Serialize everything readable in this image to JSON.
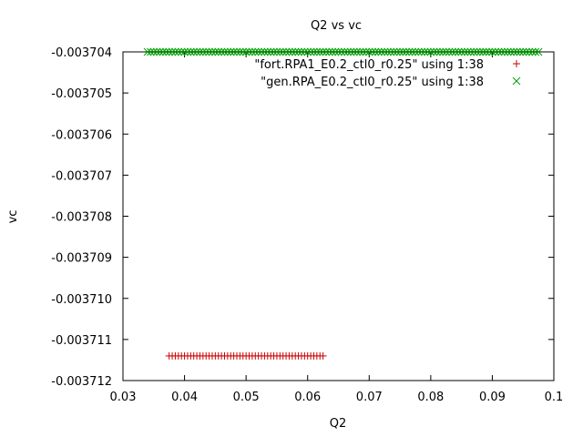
{
  "chart_data": {
    "type": "scatter",
    "title": "Q2 vs vc",
    "xlabel": "Q2",
    "ylabel": "vc",
    "xlim": [
      0.03,
      0.1
    ],
    "ylim": [
      -0.003712,
      -0.003704
    ],
    "x_ticks": [
      "0.03",
      "0.04",
      "0.05",
      "0.06",
      "0.07",
      "0.08",
      "0.09",
      "0.1"
    ],
    "y_ticks": [
      "-0.003704",
      "-0.003705",
      "-0.003706",
      "-0.003707",
      "-0.003708",
      "-0.003709",
      "-0.003710",
      "-0.003711",
      "-0.003712"
    ],
    "legend_position": "top-right",
    "series": [
      {
        "name": "\"fort.RPA1_E0.2_ctl0_r0.25\" using 1:38",
        "marker": "+",
        "color": "#cc0000",
        "x_start": 0.0375,
        "x_end": 0.0625,
        "x_step": 0.0005,
        "y": -0.0037114
      },
      {
        "name": "\"gen.RPA_E0.2_ctl0_r0.25\" using 1:38",
        "marker": "x",
        "color": "#00a000",
        "x_start": 0.034,
        "x_end": 0.0975,
        "x_step": 0.0005,
        "y": -0.003704
      }
    ]
  }
}
